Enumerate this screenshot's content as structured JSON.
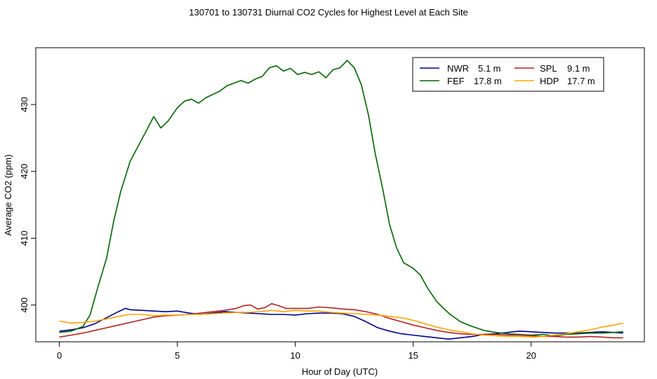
{
  "chart_data": {
    "type": "line",
    "title": "130701  to  130731 Diurnal CO2 Cycles for Highest Level at Each Site",
    "xlabel": "Hour of Day (UTC)",
    "ylabel": "Average CO2 (ppm)",
    "xlim": [
      -1,
      24.8
    ],
    "ylim": [
      394.5,
      438.5
    ],
    "xticks": [
      0,
      5,
      10,
      15,
      20
    ],
    "yticks": [
      400,
      410,
      420,
      430
    ],
    "grid": false,
    "legend_position": "top-right",
    "series": [
      {
        "name": "NWR",
        "height": "5.1 m",
        "color": "#00008b",
        "x": [
          0,
          0.5,
          1,
          1.5,
          2,
          2.5,
          2.8,
          3,
          3.5,
          4,
          4.5,
          5,
          5.5,
          6,
          6.5,
          7,
          7.5,
          8,
          8.5,
          9,
          9.5,
          10,
          10.5,
          11,
          11.5,
          12,
          12.5,
          13,
          13.5,
          14,
          14.5,
          15,
          15.5,
          16,
          16.5,
          17,
          17.5,
          18,
          18.5,
          19,
          19.5,
          20,
          20.5,
          21,
          21.5,
          22,
          22.5,
          23,
          23.5,
          23.9
        ],
        "y": [
          396.1,
          396.3,
          396.6,
          397.2,
          398.1,
          399.0,
          399.5,
          399.3,
          399.2,
          399.1,
          399.0,
          399.1,
          398.8,
          398.6,
          398.8,
          399.0,
          398.9,
          398.8,
          398.7,
          398.6,
          398.6,
          398.5,
          398.7,
          398.8,
          398.8,
          398.7,
          398.3,
          397.5,
          396.6,
          396.1,
          395.7,
          395.5,
          395.3,
          395.1,
          394.9,
          395.1,
          395.3,
          395.6,
          395.7,
          395.9,
          396.1,
          396.0,
          395.9,
          395.8,
          395.8,
          395.8,
          395.9,
          396.0,
          395.9,
          395.8
        ]
      },
      {
        "name": "FEF",
        "height": "17.8 m",
        "color": "#006400",
        "x": [
          0,
          0.5,
          1,
          1.3,
          1.6,
          2,
          2.3,
          2.6,
          3,
          3.3,
          3.6,
          4,
          4.3,
          4.6,
          4.8,
          5,
          5.3,
          5.6,
          5.9,
          6.2,
          6.5,
          6.8,
          7.1,
          7.4,
          7.7,
          8,
          8.3,
          8.6,
          8.9,
          9.2,
          9.5,
          9.8,
          10.1,
          10.4,
          10.7,
          11,
          11.3,
          11.6,
          11.9,
          12.2,
          12.5,
          12.8,
          13.1,
          13.4,
          13.7,
          14,
          14.3,
          14.6,
          15,
          15.3,
          15.6,
          16,
          16.5,
          17,
          17.5,
          18,
          18.5,
          19,
          19.5,
          20,
          20.5,
          21,
          21.5,
          22,
          22.5,
          23,
          23.5,
          23.9
        ],
        "y": [
          395.9,
          396.1,
          396.8,
          398.5,
          402.3,
          407.0,
          412.5,
          417.0,
          421.5,
          423.5,
          425.5,
          428.2,
          426.5,
          427.5,
          428.5,
          429.5,
          430.5,
          430.8,
          430.2,
          431.0,
          431.5,
          432.0,
          432.8,
          433.2,
          433.6,
          433.2,
          433.8,
          434.2,
          435.5,
          435.8,
          435.0,
          435.4,
          434.5,
          434.8,
          434.5,
          434.9,
          434.0,
          435.2,
          435.5,
          436.6,
          435.5,
          433.0,
          428.5,
          422.5,
          417.5,
          412.0,
          408.5,
          406.3,
          405.5,
          404.5,
          402.6,
          400.5,
          398.8,
          397.5,
          396.8,
          396.2,
          395.9,
          395.7,
          395.6,
          395.5,
          395.6,
          395.4,
          395.6,
          395.7,
          395.8,
          395.8,
          395.9,
          396.0
        ]
      },
      {
        "name": "SPL",
        "height": "9.1 m",
        "color": "#b22222",
        "x": [
          0,
          0.5,
          1,
          1.5,
          2,
          2.5,
          3,
          3.5,
          4,
          4.5,
          5,
          5.5,
          6,
          6.5,
          7,
          7.5,
          7.8,
          8.1,
          8.4,
          8.7,
          9,
          9.3,
          9.6,
          10,
          10.5,
          11,
          11.5,
          12,
          12.5,
          13,
          13.5,
          14,
          14.5,
          15,
          15.5,
          16,
          16.5,
          17,
          17.5,
          18,
          18.5,
          19,
          19.5,
          20,
          20.5,
          21,
          21.5,
          22,
          22.5,
          23,
          23.5,
          23.9
        ],
        "y": [
          395.2,
          395.5,
          395.8,
          396.2,
          396.6,
          397.0,
          397.4,
          397.8,
          398.2,
          398.4,
          398.5,
          398.6,
          398.8,
          399.0,
          399.2,
          399.5,
          399.9,
          400.0,
          399.4,
          399.6,
          400.2,
          399.9,
          399.5,
          399.5,
          399.5,
          399.7,
          399.6,
          399.4,
          399.3,
          399.0,
          398.6,
          398.0,
          397.5,
          397.0,
          396.6,
          396.2,
          395.9,
          395.7,
          395.6,
          395.6,
          395.6,
          395.5,
          395.5,
          395.4,
          395.3,
          395.3,
          395.2,
          395.2,
          395.3,
          395.2,
          395.1,
          395.1
        ]
      },
      {
        "name": "HDP",
        "height": "17.7 m",
        "color": "#ffa500",
        "x": [
          0,
          0.5,
          1,
          1.5,
          2,
          2.5,
          3,
          3.5,
          4,
          4.5,
          5,
          5.5,
          6,
          6.5,
          7,
          7.5,
          8,
          8.5,
          9,
          9.5,
          10,
          10.5,
          11,
          11.5,
          12,
          12.5,
          13,
          13.5,
          14,
          14.5,
          15,
          15.5,
          16,
          16.5,
          17,
          17.5,
          18,
          18.5,
          19,
          19.5,
          20,
          20.5,
          21,
          21.5,
          22,
          22.5,
          23,
          23.5,
          23.9
        ],
        "y": [
          397.6,
          397.3,
          397.4,
          397.6,
          397.9,
          398.3,
          398.6,
          398.6,
          398.4,
          398.5,
          398.5,
          398.6,
          398.6,
          398.7,
          398.8,
          398.9,
          398.9,
          399.0,
          399.2,
          399.0,
          399.2,
          399.1,
          399.1,
          398.9,
          398.8,
          398.7,
          398.6,
          398.5,
          398.3,
          398.1,
          397.7,
          397.2,
          396.7,
          396.3,
          396.0,
          395.7,
          395.5,
          395.4,
          395.3,
          395.3,
          395.2,
          395.3,
          395.5,
          395.7,
          396.0,
          396.3,
          396.7,
          397.0,
          397.3
        ]
      }
    ]
  }
}
